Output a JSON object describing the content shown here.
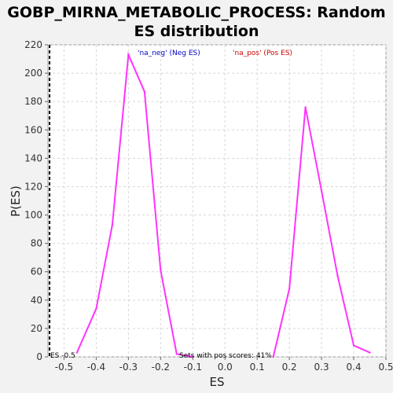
{
  "title_line1": "GOBP_MIRNA_METABOLIC_PROCESS: Random",
  "title_line2": "ES distribution",
  "colors": {
    "curve": "#ff33ff",
    "neg": "#0000cc",
    "pos": "#cc0000",
    "grid": "#d8d8d8"
  },
  "chart_data": {
    "type": "line",
    "title": "GOBP_MIRNA_METABOLIC_PROCESS: Random ES distribution",
    "xlabel": "ES",
    "ylabel": "P(ES)",
    "xlim": [
      -0.55,
      0.5
    ],
    "ylim": [
      0,
      220
    ],
    "xticks": [
      -0.5,
      -0.4,
      -0.3,
      -0.2,
      -0.1,
      0.0,
      0.1,
      0.2,
      0.3,
      0.4,
      0.5
    ],
    "xtick_labels": [
      "-0.5",
      "-0.4",
      "-0.3",
      "-0.2",
      "-0.1",
      "0.0",
      "0.1",
      "0.2",
      "0.3",
      "0.4",
      "0.5"
    ],
    "yticks": [
      0,
      20,
      40,
      60,
      80,
      100,
      120,
      140,
      160,
      180,
      200,
      220
    ],
    "grid": true,
    "series": [
      {
        "name": "neg",
        "x": [
          -0.46,
          -0.4,
          -0.35,
          -0.3,
          -0.25,
          -0.2,
          -0.15,
          -0.1
        ],
        "y": [
          3,
          34,
          93,
          213,
          187,
          61,
          2,
          0
        ]
      },
      {
        "name": "pos",
        "x": [
          0.15,
          0.2,
          0.25,
          0.3,
          0.35,
          0.4,
          0.45
        ],
        "y": [
          0,
          48,
          176,
          117,
          57,
          8,
          3
        ]
      }
    ],
    "marker_line_x": -0.545,
    "legend": [
      {
        "label": "'na_neg' (Neg ES)",
        "color": "#0000cc"
      },
      {
        "label": "'na_pos' (Pos ES)",
        "color": "#cc0000"
      }
    ],
    "annotations": {
      "es_label": "ES -0.5",
      "sets_label": "Sets with pos scores: 41%"
    }
  }
}
